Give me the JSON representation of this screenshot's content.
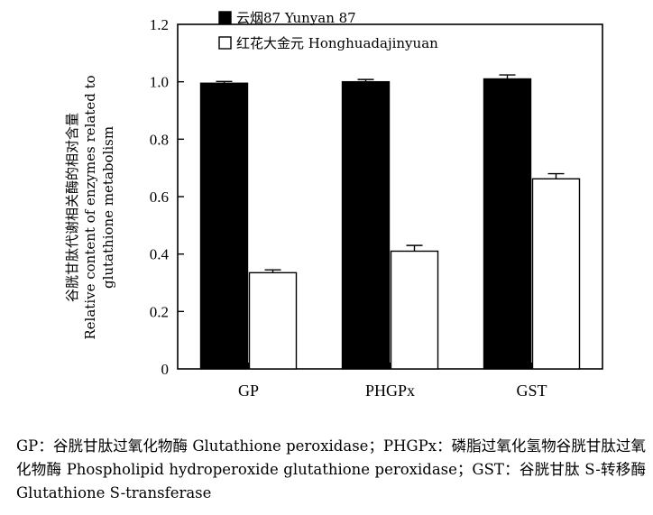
{
  "chart_data": {
    "type": "bar",
    "categories": [
      "GP",
      "PHGPx",
      "GST"
    ],
    "series": [
      {
        "name": "云烟87 Yunyan 87",
        "color": "#000000",
        "values": [
          0.995,
          1.0,
          1.01
        ],
        "errors": [
          0.006,
          0.008,
          0.014
        ]
      },
      {
        "name": "红花大金元 Honghuadajinyuan",
        "color": "#ffffff",
        "values": [
          0.335,
          0.41,
          0.662
        ],
        "errors": [
          0.01,
          0.02,
          0.018
        ]
      }
    ],
    "ylim": [
      0,
      1.2
    ],
    "yticks": [
      "0",
      "0.2",
      "0.4",
      "0.6",
      "0.8",
      "1.0",
      "1.2"
    ],
    "ylabel_cn": "谷胱甘肽代谢相关酶的相对含量",
    "ylabel_en_1": "Relative content of enzymes related to",
    "ylabel_en_2": "glutathione metabolism",
    "xlabel": "",
    "legend_position": "top-left",
    "grid": false
  },
  "caption": "GP：谷胱甘肽过氧化物酶 Glutathione peroxidase；PHGPx：磷脂过氧化氢物谷胱甘肽过氧化物酶 Phospholipid hydroperoxide glutathione peroxidase；GST：谷胱甘肽 S-转移酶 Glutathione S-transferase"
}
